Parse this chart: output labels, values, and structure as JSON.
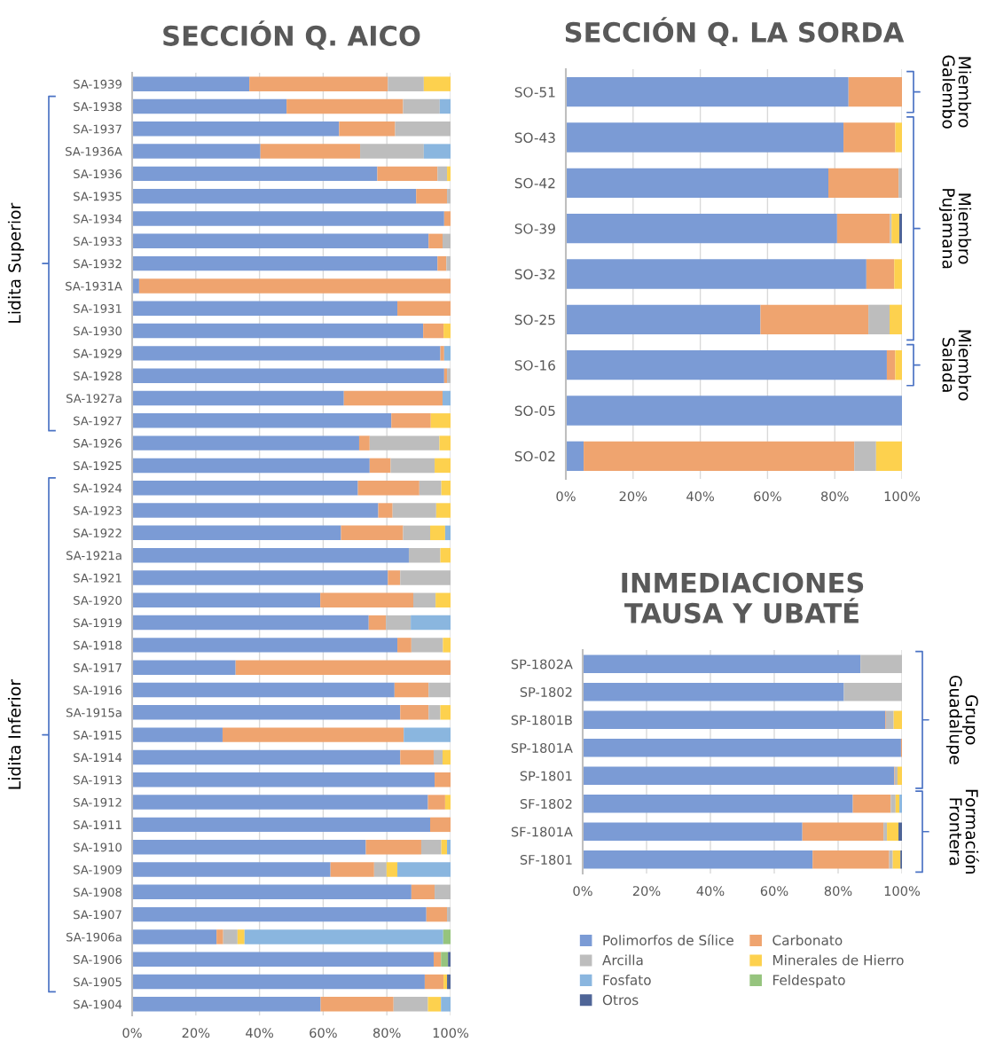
{
  "chart_data": [
    {
      "type": "bar",
      "orientation": "horizontal",
      "stacked": true,
      "title": "SECCIÓN Q. AICO",
      "categories": [
        "SA-1939",
        "SA-1938",
        "SA-1937",
        "SA-1936A",
        "SA-1936",
        "SA-1935",
        "SA-1934",
        "SA-1933",
        "SA-1932",
        "SA-1931A",
        "SA-1931",
        "SA-1930",
        "SA-1929",
        "SA-1928",
        "SA-1927a",
        "SA-1927",
        "SA-1926",
        "SA-1925",
        "SA-1924",
        "SA-1923",
        "SA-1922",
        "SA-1921a",
        "SA-1921",
        "SA-1920",
        "SA-1919",
        "SA-1918",
        "SA-1917",
        "SA-1916",
        "SA-1915a",
        "SA-1915",
        "SA-1914",
        "SA-1913",
        "SA-1912",
        "SA-1911",
        "SA-1910",
        "SA-1909",
        "SA-1908",
        "SA-1907",
        "SA-1906a",
        "SA-1906",
        "SA-1905",
        "SA-1904"
      ],
      "series": [
        {
          "color": "#7b9bd5",
          "values": [
            36.8,
            48.5,
            65.0,
            40.3,
            77.0,
            89.2,
            98.0,
            93.1,
            95.9,
            2.2,
            83.3,
            91.4,
            96.8,
            98.0,
            66.5,
            81.4,
            71.3,
            74.6,
            70.9,
            77.3,
            65.6,
            86.9,
            80.3,
            59.1,
            74.3,
            83.3,
            32.5,
            82.4,
            84.2,
            28.4,
            84.2,
            95.0,
            92.9,
            93.6,
            73.4,
            62.3,
            87.7,
            92.4,
            26.5,
            94.7,
            91.9,
            59.2
          ]
        },
        {
          "color": "#efa46f",
          "values": [
            43.5,
            36.6,
            17.6,
            31.3,
            18.9,
            9.7,
            2.0,
            4.4,
            2.8,
            97.8,
            16.7,
            6.4,
            1.2,
            0.9,
            31.0,
            12.4,
            3.3,
            6.6,
            19.3,
            4.5,
            19.5,
            null,
            3.9,
            29.2,
            5.4,
            4.4,
            67.5,
            10.7,
            8.9,
            56.9,
            10.5,
            5.0,
            5.4,
            6.4,
            17.4,
            13.7,
            7.3,
            6.5,
            2.1,
            2.3,
            5.9,
            22.9
          ]
        },
        {
          "color": "#bdbdbd",
          "values": [
            11.3,
            11.5,
            17.4,
            20.0,
            3.0,
            1.1,
            null,
            2.5,
            1.3,
            null,
            null,
            null,
            null,
            1.1,
            null,
            null,
            21.9,
            13.8,
            6.9,
            13.7,
            8.5,
            9.9,
            15.8,
            7.0,
            7.8,
            9.9,
            null,
            6.9,
            3.7,
            null,
            2.8,
            null,
            null,
            null,
            6.3,
            3.9,
            5.0,
            1.1,
            4.5,
            null,
            null,
            10.8
          ]
        },
        {
          "color": "#fdd14e",
          "values": [
            8.4,
            null,
            null,
            null,
            1.1,
            null,
            null,
            null,
            null,
            null,
            null,
            2.2,
            null,
            null,
            null,
            6.2,
            3.5,
            5.0,
            2.9,
            4.5,
            4.7,
            3.2,
            null,
            4.7,
            null,
            2.4,
            null,
            null,
            3.2,
            null,
            2.5,
            null,
            1.7,
            null,
            1.8,
            3.4,
            null,
            null,
            2.2,
            null,
            1.1,
            4.1
          ]
        },
        {
          "color": "#8ab6df",
          "values": [
            null,
            3.4,
            null,
            8.4,
            null,
            null,
            null,
            null,
            null,
            null,
            null,
            null,
            2.0,
            null,
            2.5,
            null,
            null,
            null,
            null,
            null,
            1.7,
            null,
            null,
            null,
            12.5,
            null,
            null,
            null,
            null,
            14.7,
            null,
            null,
            null,
            null,
            1.1,
            16.7,
            null,
            null,
            62.4,
            null,
            null,
            3.0
          ]
        },
        {
          "color": "#96c47e",
          "values": [
            null,
            null,
            null,
            null,
            null,
            null,
            null,
            null,
            null,
            null,
            null,
            null,
            null,
            null,
            null,
            null,
            null,
            null,
            null,
            null,
            null,
            null,
            null,
            null,
            null,
            null,
            null,
            null,
            null,
            null,
            null,
            null,
            null,
            null,
            null,
            null,
            null,
            null,
            2.3,
            2.2,
            null,
            null
          ]
        },
        {
          "color": "#4f6597",
          "values": [
            null,
            null,
            null,
            null,
            null,
            null,
            null,
            null,
            null,
            null,
            null,
            null,
            null,
            null,
            null,
            null,
            null,
            null,
            null,
            null,
            null,
            null,
            null,
            null,
            null,
            null,
            null,
            null,
            null,
            null,
            null,
            null,
            null,
            null,
            null,
            null,
            null,
            null,
            null,
            0.8,
            1.1,
            null
          ]
        }
      ],
      "xlim": [
        0,
        100
      ],
      "xticks": [
        {
          "value": 0,
          "label": "0%"
        },
        {
          "value": 20,
          "label": "20%"
        },
        {
          "value": 40,
          "label": "40%"
        },
        {
          "value": 60,
          "label": "60%"
        },
        {
          "value": 80,
          "label": "80%"
        },
        {
          "value": 100,
          "label": "100%"
        }
      ],
      "grid": "x",
      "annotations": [
        "Lidita Superior",
        "Lidita Inferior"
      ]
    },
    {
      "type": "bar",
      "orientation": "horizontal",
      "stacked": true,
      "title": "SECCIÓN Q. LA SORDA",
      "categories": [
        "SO-51",
        "SO-43",
        "SO-42",
        "SO-39",
        "SO-32",
        "SO-25",
        "SO-16",
        "SO-05",
        "SO-02"
      ],
      "series": [
        {
          "color": "#7b9bd5",
          "values": [
            84.1,
            82.6,
            78.1,
            80.7,
            89.4,
            57.9,
            95.5,
            100,
            5.3
          ]
        },
        {
          "color": "#efa46f",
          "values": [
            15.9,
            15.4,
            20.9,
            15.7,
            8.3,
            32.1,
            2.5,
            null,
            80.5
          ]
        },
        {
          "color": "#bdbdbd",
          "values": [
            null,
            null,
            1.0,
            0.5,
            null,
            6.3,
            null,
            null,
            6.5
          ]
        },
        {
          "color": "#fdd14e",
          "values": [
            null,
            2.0,
            null,
            2.3,
            2.3,
            3.7,
            2.0,
            null,
            7.7
          ]
        },
        {
          "color": "#4f6597",
          "values": [
            null,
            null,
            null,
            0.8,
            null,
            null,
            null,
            null,
            null
          ]
        }
      ],
      "xlim": [
        0,
        100
      ],
      "xticks": [
        {
          "value": 0,
          "label": "0%"
        },
        {
          "value": 20,
          "label": "20%"
        },
        {
          "value": 40,
          "label": "40%"
        },
        {
          "value": 60,
          "label": "60%"
        },
        {
          "value": 80,
          "label": "80%"
        },
        {
          "value": 100,
          "label": "100%"
        }
      ],
      "grid": "x",
      "annotations": [
        "Miembro\nGalembo",
        "Miembro\nPujamana",
        "Miembro\nSalada"
      ]
    },
    {
      "type": "bar",
      "orientation": "horizontal",
      "stacked": true,
      "title": "INMEDIACIONES\nTAUSA Y UBATÉ",
      "categories": [
        "SP-1802A",
        "SP-1802",
        "SP-1801B",
        "SP-1801A",
        "SP-1801",
        "SF-1802",
        "SF-1801A",
        "SF-1801"
      ],
      "series": [
        {
          "name": "Polimorfos de Sílice",
          "color": "#7b9bd5",
          "values": [
            87.0,
            81.8,
            94.8,
            99.7,
            97.5,
            84.6,
            68.8,
            72.0
          ]
        },
        {
          "name": "Carbonato",
          "color": "#efa46f",
          "values": [
            null,
            null,
            0.2,
            0.3,
            0.2,
            11.9,
            25.4,
            24.0
          ]
        },
        {
          "name": "Arcilla",
          "color": "#bdbdbd",
          "values": [
            13.0,
            18.2,
            2.4,
            null,
            0.9,
            1.5,
            1.1,
            1.1
          ]
        },
        {
          "name": "Minerales de Hierro",
          "color": "#fdd14e",
          "values": [
            null,
            null,
            2.6,
            null,
            1.4,
            1.2,
            3.6,
            2.4
          ]
        },
        {
          "name": "Fosfato",
          "color": "#8ab6df",
          "values": [
            null,
            null,
            null,
            null,
            null,
            0.8,
            null,
            null
          ]
        },
        {
          "name": "Feldespato",
          "color": "#96c47e",
          "values": [
            null,
            null,
            null,
            null,
            null,
            null,
            null,
            null
          ]
        },
        {
          "name": "Otros",
          "color": "#4f6597",
          "values": [
            null,
            null,
            null,
            null,
            null,
            null,
            1.1,
            0.5
          ]
        }
      ],
      "xlim": [
        0,
        100
      ],
      "xticks": [
        {
          "value": 0,
          "label": "0%"
        },
        {
          "value": 20,
          "label": "20%"
        },
        {
          "value": 40,
          "label": "40%"
        },
        {
          "value": 60,
          "label": "60%"
        },
        {
          "value": 80,
          "label": "80%"
        },
        {
          "value": 100,
          "label": "100%"
        }
      ],
      "grid": "x",
      "legend": "bottom",
      "annotations": [
        "Grupo\nGuadalupe",
        "Formación\nFrontera"
      ]
    }
  ]
}
